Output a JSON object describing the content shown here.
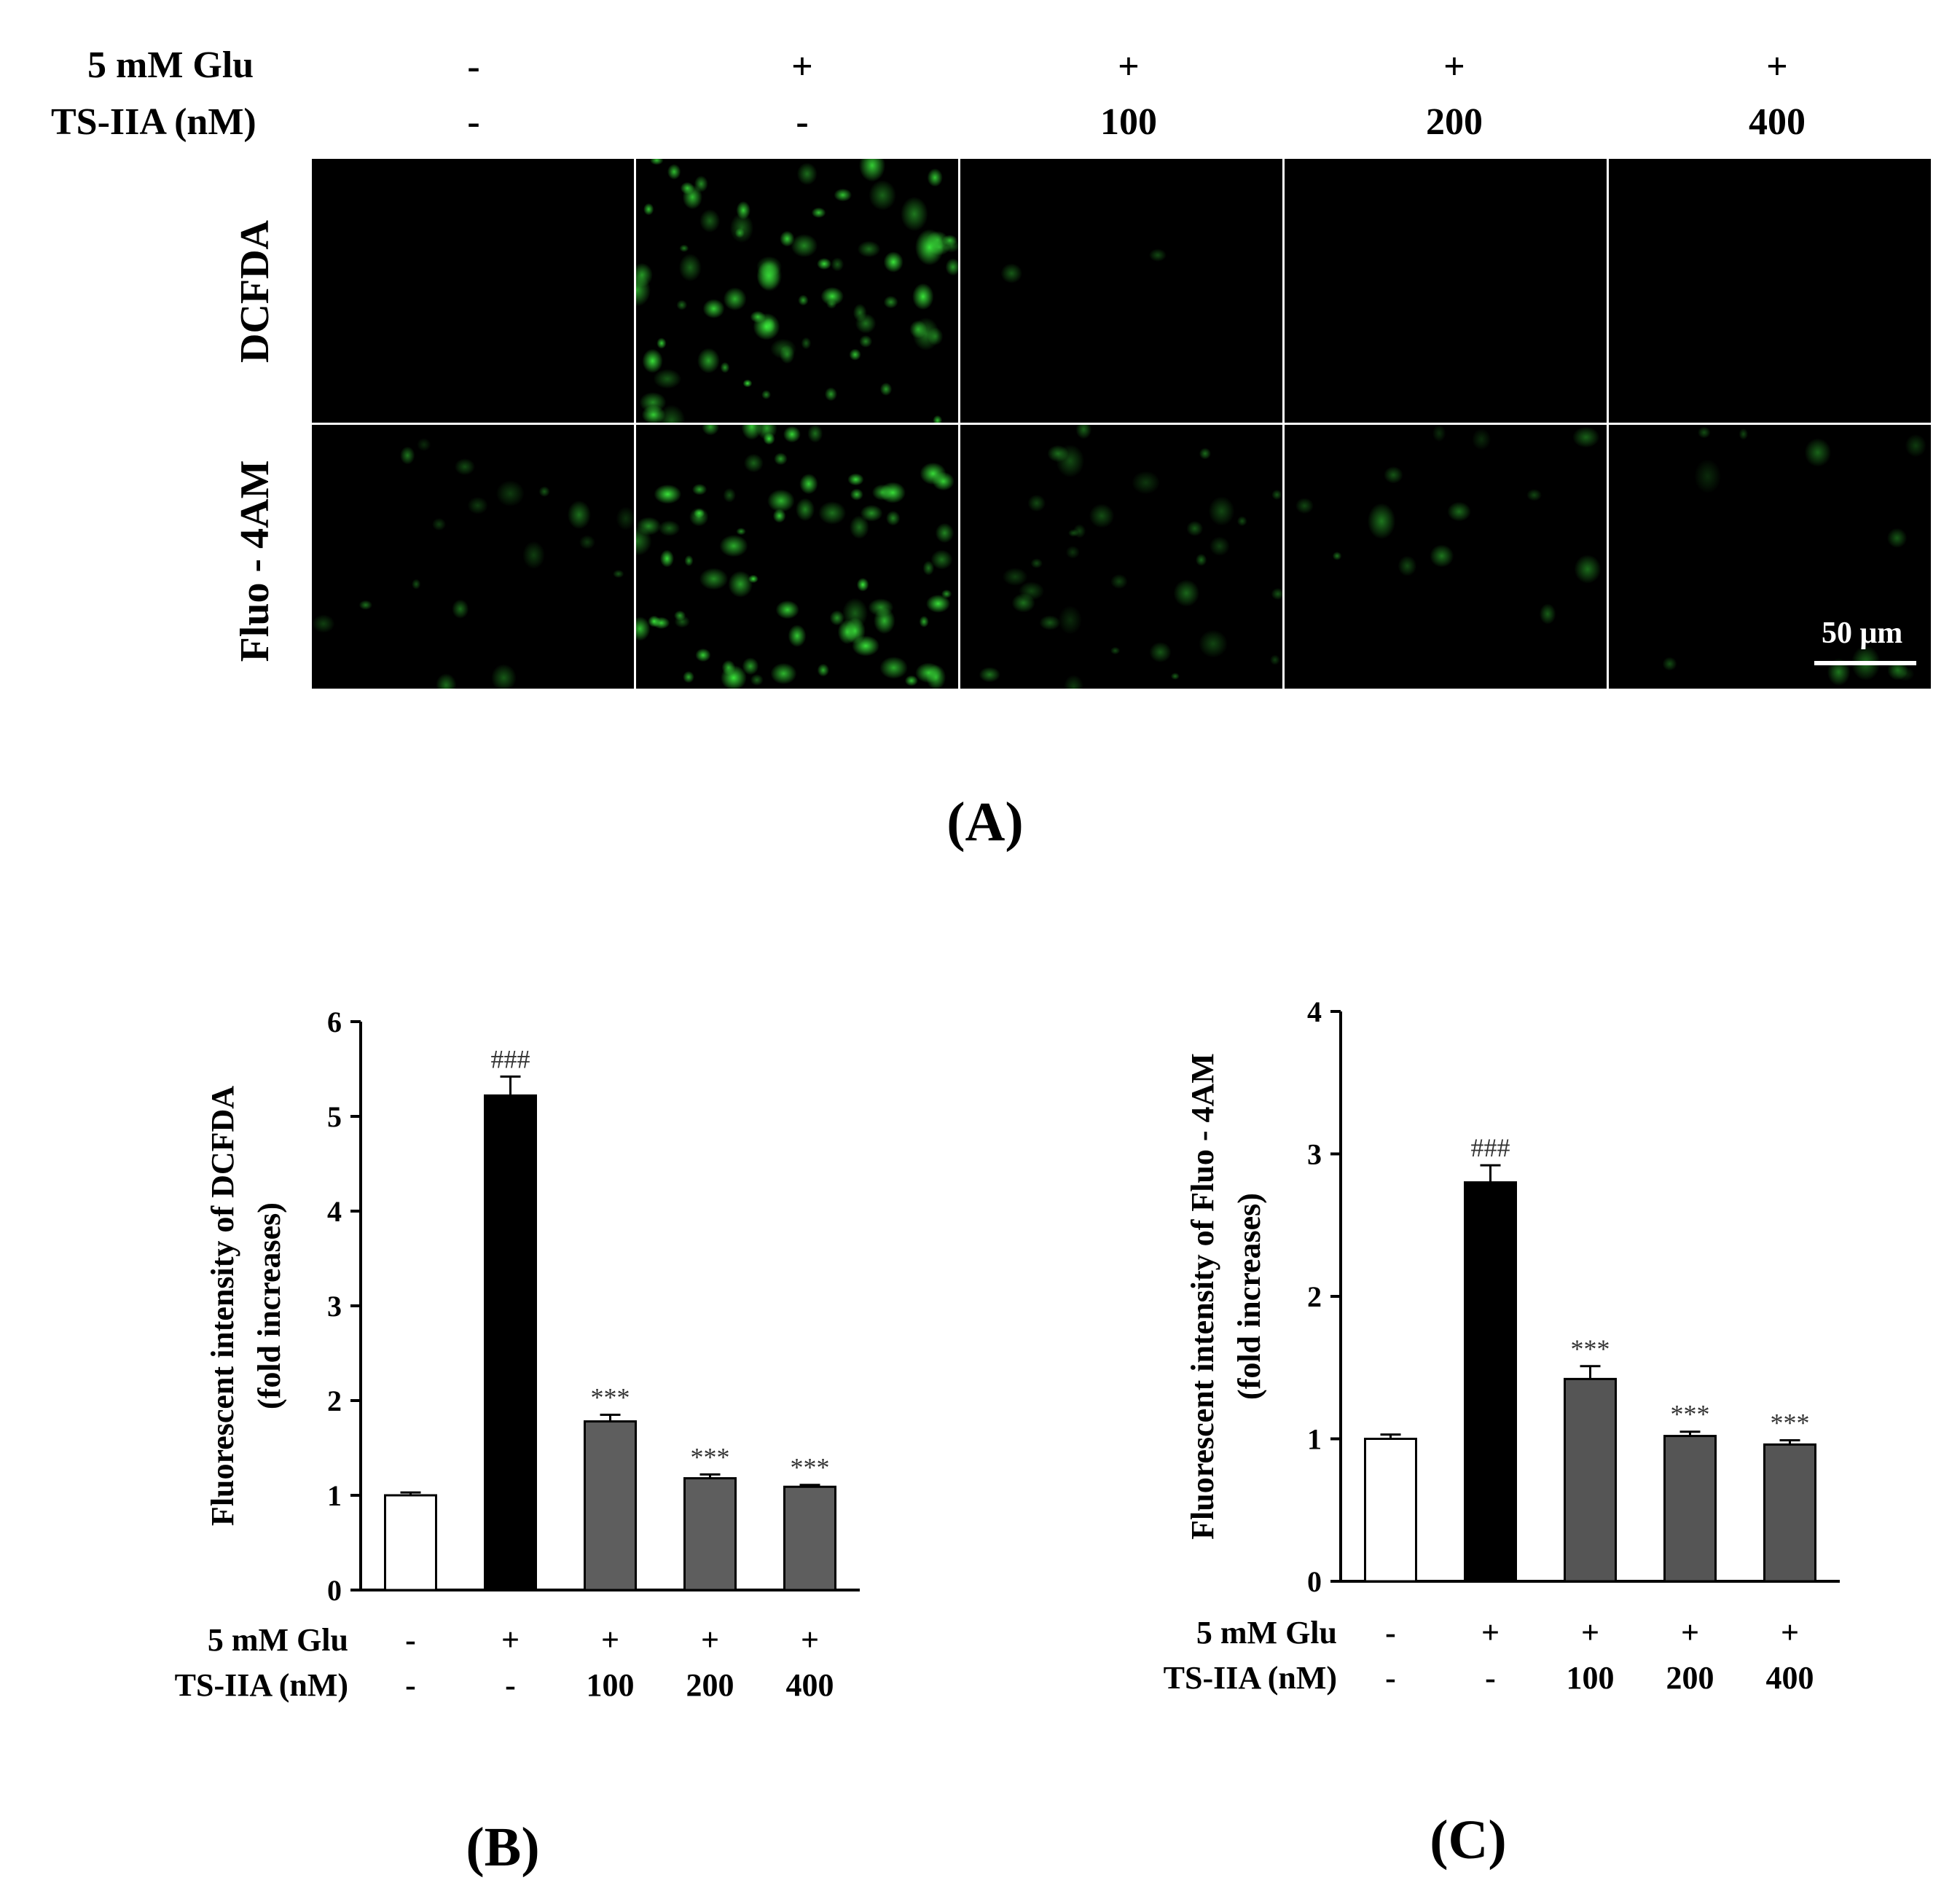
{
  "panel_a": {
    "label": "(A)",
    "row_headers": [
      "5 mM Glu",
      "TS-IIA (nM)"
    ],
    "columns": [
      {
        "glu": "-",
        "ts": "-"
      },
      {
        "glu": "+",
        "ts": "-"
      },
      {
        "glu": "+",
        "ts": "100"
      },
      {
        "glu": "+",
        "ts": "200"
      },
      {
        "glu": "+",
        "ts": "400"
      }
    ],
    "rows": [
      "DCFDA",
      "Fluo - 4AM"
    ],
    "scale_bar": "50 μm",
    "fluorescence_color": "#33dd33",
    "relative_intensity": [
      [
        0.0,
        1.0,
        0.03,
        0.0,
        0.0
      ],
      [
        0.25,
        1.0,
        0.45,
        0.18,
        0.15
      ]
    ]
  },
  "chart_data": [
    {
      "type": "bar",
      "panel_label": "(B)",
      "ylabel": [
        "Fluorescent intensity of DCFDA",
        "(fold increases)"
      ],
      "ylim": [
        0,
        6
      ],
      "yticks": [
        "0",
        "1",
        "2",
        "3",
        "4",
        "5",
        "6"
      ],
      "condition_rows": [
        {
          "label": "5 mM Glu",
          "values": [
            "-",
            "+",
            "+",
            "+",
            "+"
          ]
        },
        {
          "label": "TS-IIA (nM)",
          "values": [
            "-",
            "-",
            "100",
            "200",
            "400"
          ]
        }
      ],
      "values": [
        1.0,
        5.22,
        1.78,
        1.18,
        1.09
      ],
      "errors": [
        0.03,
        0.2,
        0.07,
        0.04,
        0.02
      ],
      "annotations": [
        "",
        "###",
        "***",
        "***",
        "***"
      ],
      "bar_colors": [
        "#ffffff",
        "#000000",
        "#5e5e5e",
        "#5e5e5e",
        "#5e5e5e"
      ],
      "grid": false
    },
    {
      "type": "bar",
      "panel_label": "(C)",
      "ylabel": [
        "Fluorescent intensity of Fluo - 4AM",
        "(fold increases)"
      ],
      "ylim": [
        0,
        4
      ],
      "yticks": [
        "0",
        "1",
        "2",
        "3",
        "4"
      ],
      "condition_rows": [
        {
          "label": "5 mM Glu",
          "values": [
            "-",
            "+",
            "+",
            "+",
            "+"
          ]
        },
        {
          "label": "TS-IIA (nM)",
          "values": [
            "-",
            "-",
            "100",
            "200",
            "400"
          ]
        }
      ],
      "values": [
        1.0,
        2.8,
        1.42,
        1.02,
        0.96
      ],
      "errors": [
        0.03,
        0.12,
        0.09,
        0.03,
        0.03
      ],
      "annotations": [
        "",
        "###",
        "***",
        "***",
        "***"
      ],
      "bar_colors": [
        "#ffffff",
        "#000000",
        "#555555",
        "#555555",
        "#555555"
      ],
      "grid": false
    }
  ]
}
